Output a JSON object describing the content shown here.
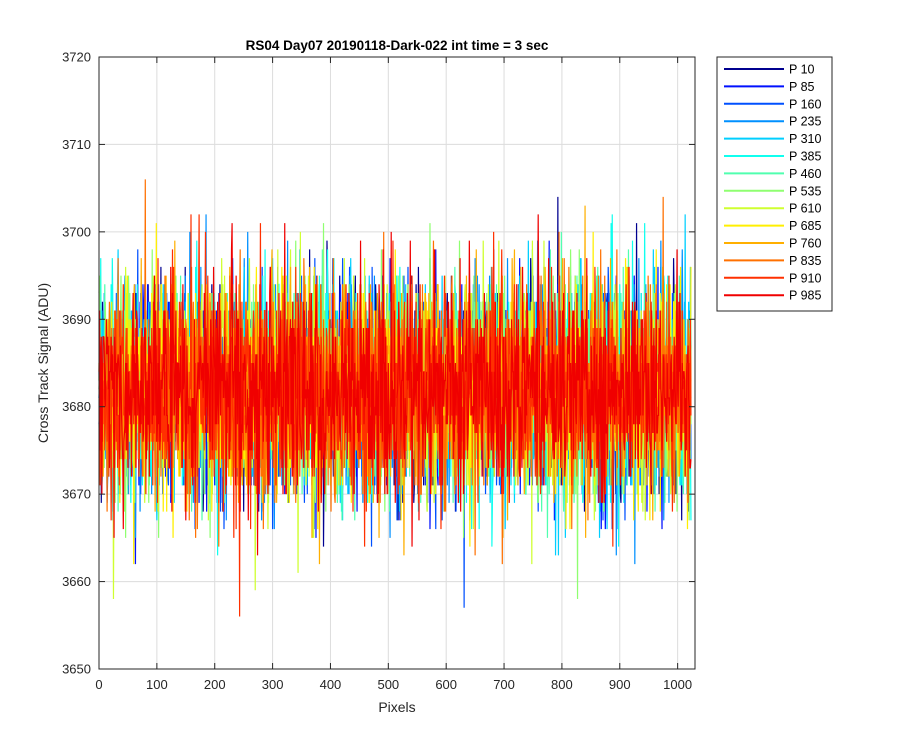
{
  "chart_data": {
    "type": "line",
    "title": "RS04 Day07 20190118-Dark-022 int time = 3 sec",
    "xlabel": "Pixels",
    "ylabel": "Cross Track Signal (ADU)",
    "xlim": [
      0,
      1030
    ],
    "ylim": [
      3650,
      3720
    ],
    "xticks": [
      0,
      100,
      200,
      300,
      400,
      500,
      600,
      700,
      800,
      900,
      1000
    ],
    "yticks": [
      3650,
      3660,
      3670,
      3680,
      3690,
      3700,
      3710,
      3720
    ],
    "grid": true,
    "legend_position": "outside-top-right",
    "num_points": 1024,
    "series": [
      {
        "name": "P 10",
        "color": "#00008F",
        "mean": 3682,
        "spread": 6.0
      },
      {
        "name": "P 85",
        "color": "#0010FF",
        "mean": 3682,
        "spread": 6.0
      },
      {
        "name": "P 160",
        "color": "#0050FF",
        "mean": 3682,
        "spread": 6.0
      },
      {
        "name": "P 235",
        "color": "#0090FF",
        "mean": 3682,
        "spread": 6.0
      },
      {
        "name": "P 310",
        "color": "#00CFFF",
        "mean": 3682,
        "spread": 6.0
      },
      {
        "name": "P 385",
        "color": "#10FFEF",
        "mean": 3682,
        "spread": 6.0
      },
      {
        "name": "P 460",
        "color": "#50FFAF",
        "mean": 3682,
        "spread": 6.0
      },
      {
        "name": "P 535",
        "color": "#8FFF70",
        "mean": 3682,
        "spread": 6.0
      },
      {
        "name": "P 610",
        "color": "#CFFF30",
        "mean": 3682,
        "spread": 6.0
      },
      {
        "name": "P 685",
        "color": "#FFEF00",
        "mean": 3682,
        "spread": 6.0
      },
      {
        "name": "P 760",
        "color": "#FFAF00",
        "mean": 3682,
        "spread": 6.0
      },
      {
        "name": "P 835",
        "color": "#FF7000",
        "mean": 3682,
        "spread": 6.0
      },
      {
        "name": "P 910",
        "color": "#FF3000",
        "mean": 3682,
        "spread": 6.0
      },
      {
        "name": "P 985",
        "color": "#F00000",
        "mean": 3682,
        "spread": 6.0
      }
    ],
    "range_observed": {
      "min": 3653,
      "max": 3713
    }
  }
}
